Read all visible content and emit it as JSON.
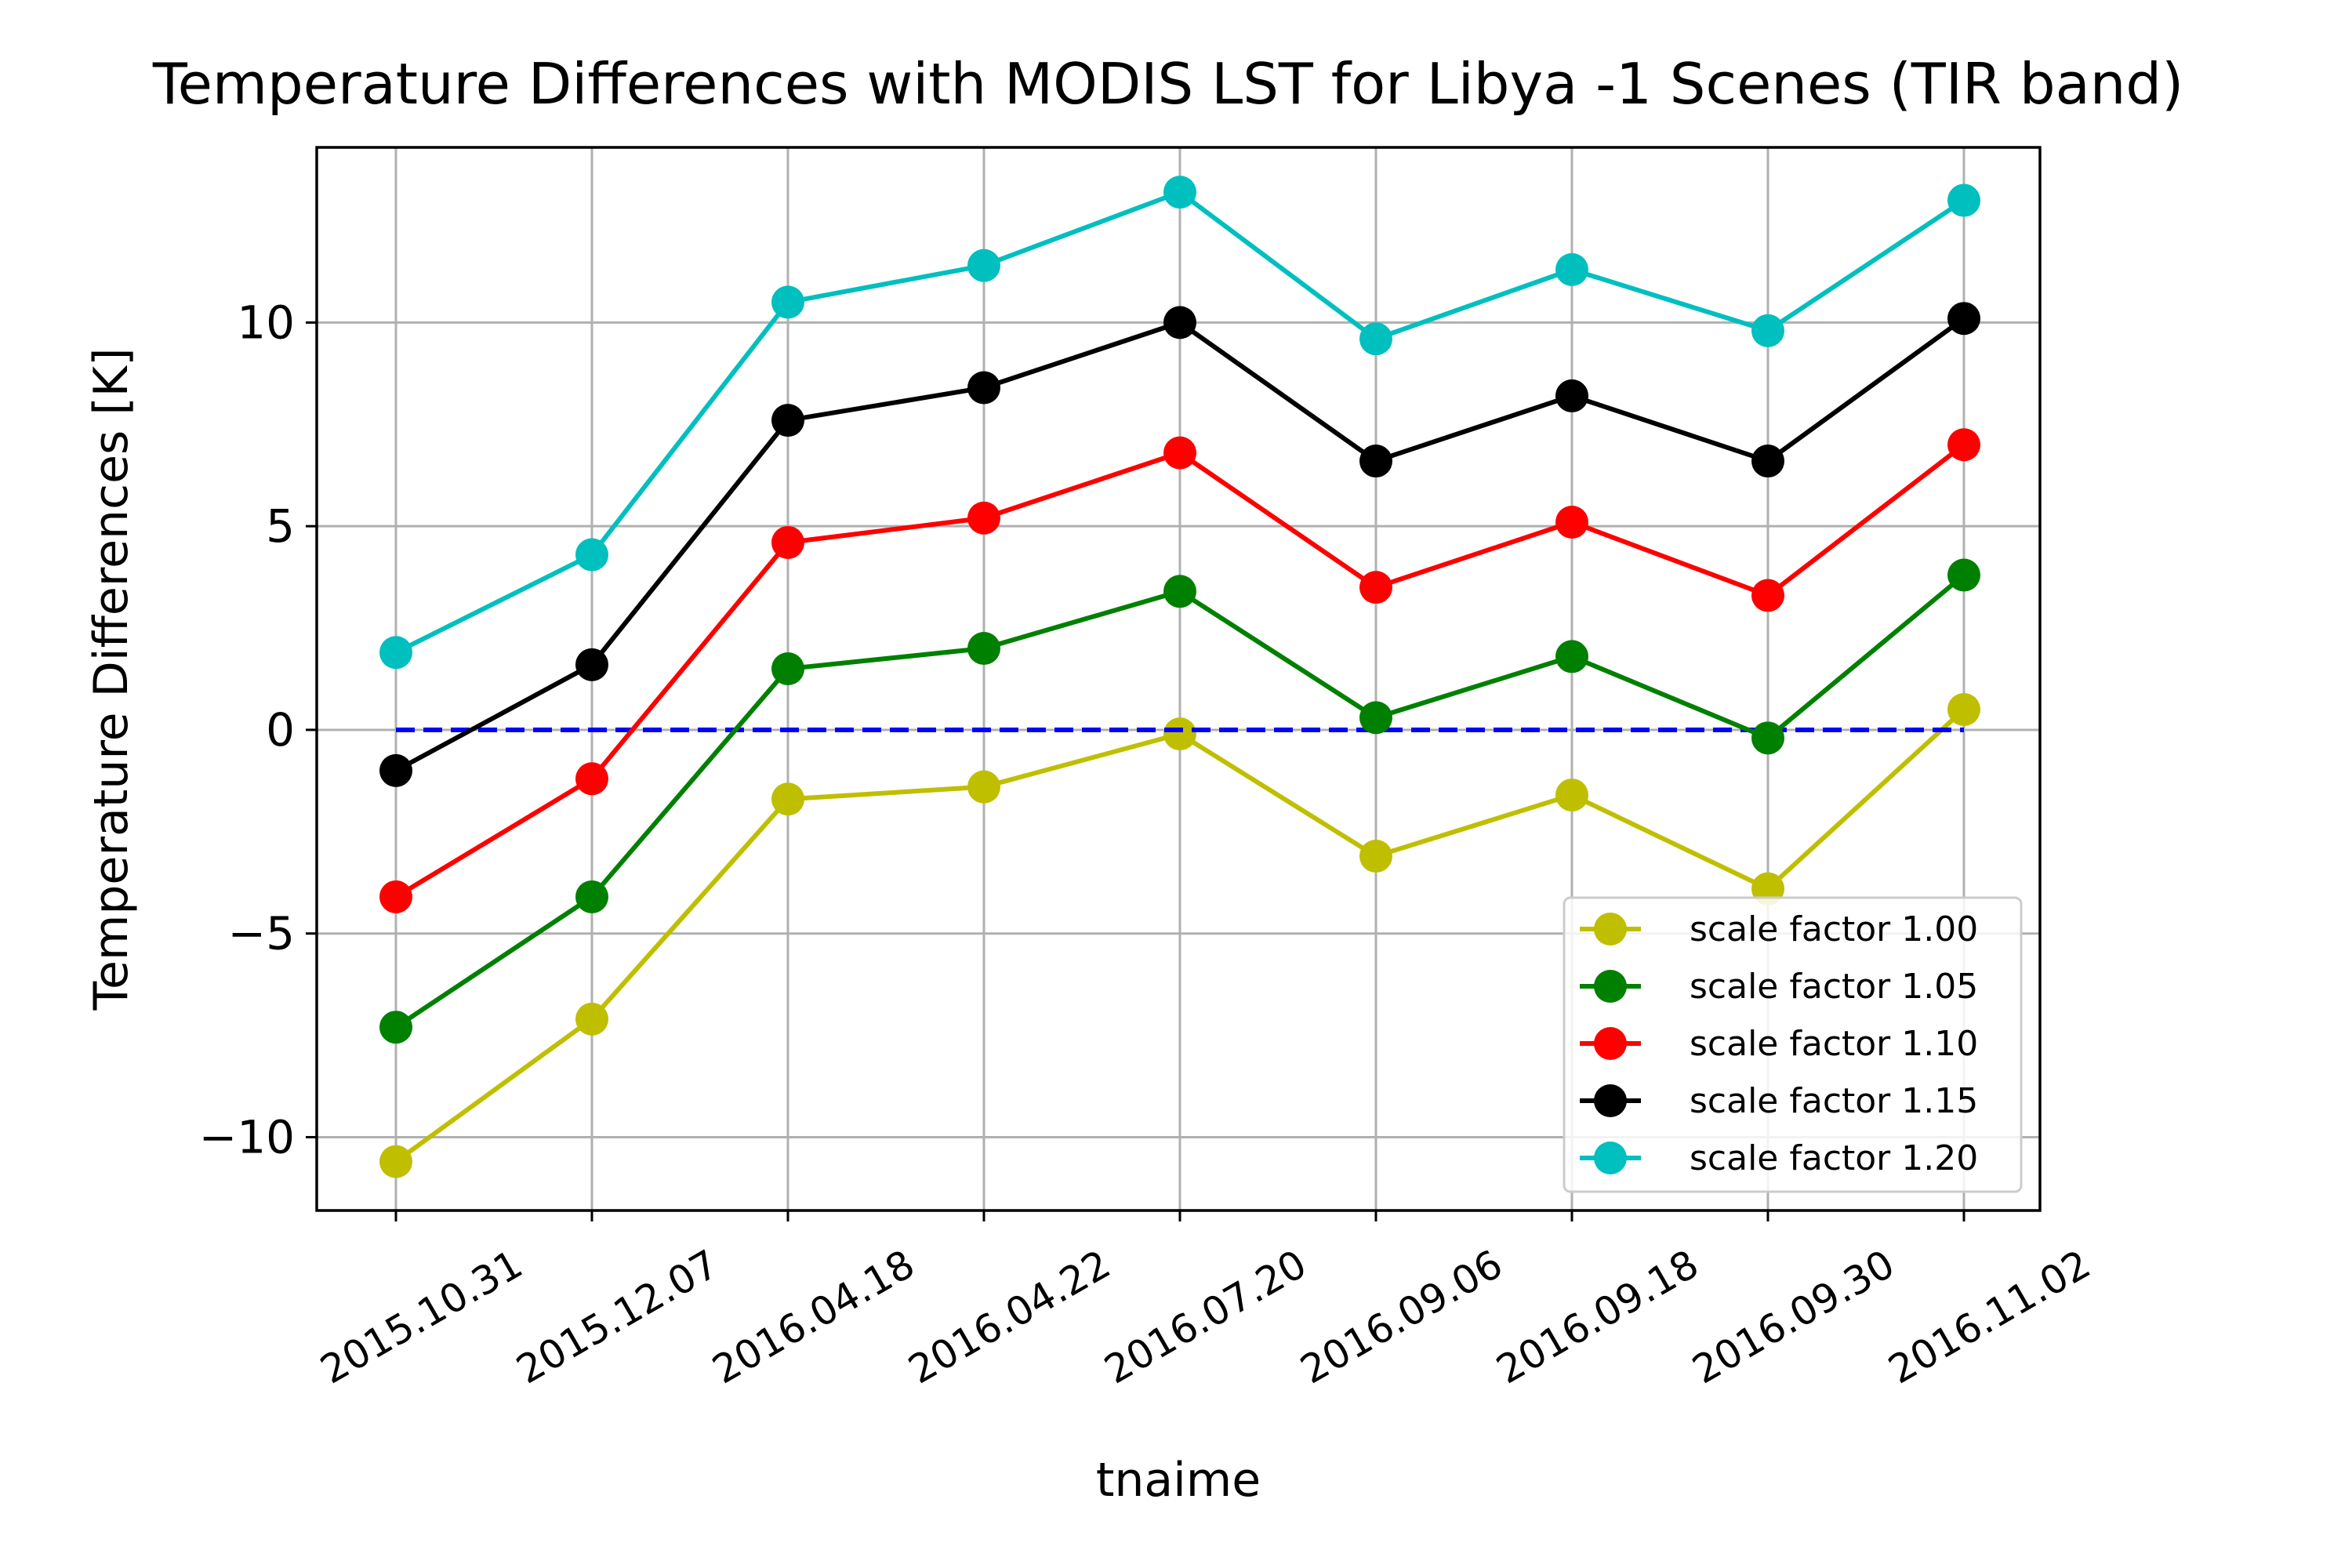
{
  "chart_data": {
    "type": "line",
    "title": "Temperature Differences with MODIS LST for Libya -1 Scenes (TIR band)",
    "xlabel": "tnaime",
    "ylabel": "Temperature Differences [K]",
    "categories": [
      "2015.10.31",
      "2015.12.07",
      "2016.04.18",
      "2016.04.22",
      "2016.07.20",
      "2016.09.06",
      "2016.09.18",
      "2016.09.30",
      "2016.11.02"
    ],
    "ylim": [
      -11.8,
      14.3
    ],
    "yticks": [
      -10,
      -5,
      0,
      5,
      10
    ],
    "ytick_labels": [
      "−10",
      "−5",
      "0",
      "5",
      "10"
    ],
    "grid": true,
    "legend_position": "lower-right",
    "reference_line": {
      "y": 0,
      "color": "#0000ff",
      "style": "dashed"
    },
    "series": [
      {
        "name": "scale factor 1.00",
        "color": "#bfbf00",
        "values": [
          -10.6,
          -7.1,
          -1.7,
          -1.4,
          -0.1,
          -3.1,
          -1.6,
          -3.9,
          0.5
        ]
      },
      {
        "name": "scale factor 1.05",
        "color": "#008000",
        "values": [
          -7.3,
          -4.1,
          1.5,
          2.0,
          3.4,
          0.3,
          1.8,
          -0.2,
          3.8
        ]
      },
      {
        "name": "scale factor 1.10",
        "color": "#ff0000",
        "values": [
          -4.1,
          -1.2,
          4.6,
          5.2,
          6.8,
          3.5,
          5.1,
          3.3,
          7.0
        ]
      },
      {
        "name": "scale factor 1.15",
        "color": "#000000",
        "values": [
          -1.0,
          1.6,
          7.6,
          8.4,
          10.0,
          6.6,
          8.2,
          6.6,
          10.1
        ]
      },
      {
        "name": "scale factor 1.20",
        "color": "#00bfbf",
        "values": [
          1.9,
          4.3,
          10.5,
          11.4,
          13.2,
          9.6,
          11.3,
          9.8,
          13.0
        ]
      }
    ]
  }
}
